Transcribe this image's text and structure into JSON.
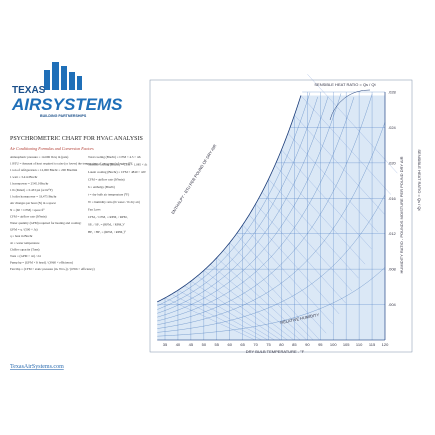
{
  "logo": {
    "line1": "TEXAS",
    "line2": "AIRSYSTEMS",
    "tagline": "BUILDING PARTNERSHIPS"
  },
  "header": {
    "title": "PSYCHROMETRIC CHART FOR HVAC ANALYSIS",
    "subtitle": "Air Conditioning Formulas and Conversion Factors"
  },
  "formulas_left": [
    "Atmospheric pressure = 14.696 lb/sq in (psia)",
    "1 BTU = Amount of heat required to raise (or lower) the temperature of one pound of water 1°F",
    "1 ton of refrigeration = 12,000 Btu/hr = 200 Btu/min",
    "1 watt = 3.414 Btu/hr",
    "1 horsepower = 2545.0 Btu/hr",
    "1 lb (lbmol) = 0.433 psi (at 62°F)",
    "1 boiler horsepower = 33,475 Btu/hr",
    "Air changes per hour (N) in a space:",
    "N = (60 × CFM) / space ft³",
    "CFM = airflow rate (ft³/min)",
    "Water quantity (GPM) required for heating and cooling:",
    "GPM = q / (500 × Δt)",
    "q = heat in Btu/hr",
    "Δt = water temperature",
    "Chiller capacity (Tons):",
    "Tons = (GPM × Δt) / 24",
    "Pump hp = (GPM × ft head) / (3960 × efficiency)",
    "Fan bhp = (CFM × static pressure (in. W.G.)) / (6356 × efficiency)"
  ],
  "formulas_right": [
    "Total cooling (Btu/hr) = CFM × 4.5 × Δh",
    "Sensible cooling (Btu/hr) = CFM × 1.085 × Δt",
    "Latent cooling (Btu/hr) = CFM × 4840 × ΔW",
    "CFM = airflow rate (ft³/min)",
    "h = enthalpy (Btu/lb)",
    "t = dry bulb air temperature (°F)",
    "W = humidity ratio (lb water / lb dry air)",
    "Fan Laws",
    "CFM₂ / CFM₁ = RPM₂ / RPM₁",
    "SP₂ / SP₁ = (RPM₂ / RPM₁)²",
    "HP₂ / HP₁ = (RPM₂ / RPM₁)³"
  ],
  "chart": {
    "top_label": "SENSIBLE HEAT RATIO = Qs / Qt",
    "x_axis_title": "DRY BULB TEMPERATURE - °F",
    "x_ticks": [
      "35",
      "40",
      "45",
      "50",
      "55",
      "60",
      "65",
      "70",
      "75",
      "80",
      "85",
      "90",
      "95",
      "100",
      "105",
      "110",
      "115",
      "120"
    ],
    "right_axis_title": "HUMIDITY RATIO - POUNDS MOISTURE PER POUND DRY AIR",
    "right_ticks": [
      ".028",
      ".024",
      ".020",
      ".016",
      ".012",
      ".008",
      ".004"
    ],
    "side_label": "SENSIBLE HEAT RATIO = Qs / Qt",
    "diagonal_label": "ENTHALPY - BTU PER POUND OF DRY AIR",
    "rh_label": "RELATIVE HUMIDITY"
  },
  "footer": {
    "website": "TexasAirSystems.com"
  }
}
